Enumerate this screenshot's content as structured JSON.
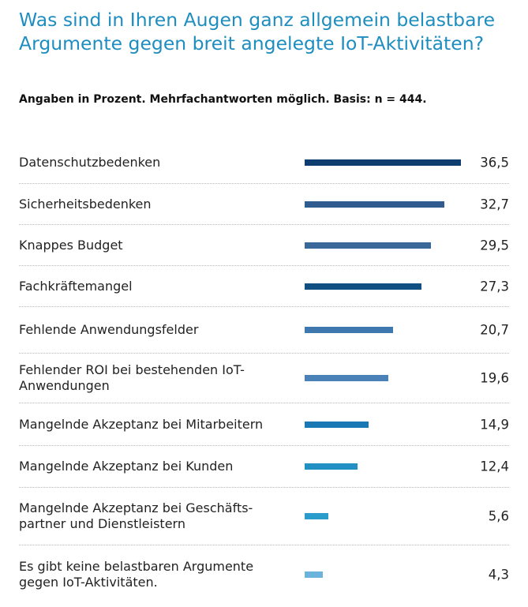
{
  "title": "Was sind in Ihren Augen ganz allgemein be­lastbare Argumente gegen breit angelegte IoT-Aktivitäten?",
  "subtitle": "Angaben in Prozent. Mehrfachantworten möglich. Basis: n = 444.",
  "chart_data": {
    "type": "bar",
    "orientation": "horizontal",
    "title": "Was sind in Ihren Augen ganz allgemein be­lastbare Argumente gegen breit angelegte IoT-Aktivitäten?",
    "subtitle": "Angaben in Prozent. Mehrfachantworten möglich. Basis: n = 444.",
    "categories": [
      "Datenschutzbedenken",
      "Sicherheitsbedenken",
      "Knappes Budget",
      "Fachkräftemangel",
      "Fehlende Anwendungsfelder",
      "Fehlender ROI bei bestehenden IoT-Anwendungen",
      "Mangelnde Akzeptanz bei Mitarbeitern",
      "Mangelnde Akzeptanz bei Kunden",
      "Mangelnde Akzeptanz bei Geschäfts­partner und Dienstleistern",
      "Es gibt keine belastbaren Argumente gegen IoT-Aktivitäten."
    ],
    "values": [
      36.5,
      32.7,
      29.5,
      27.3,
      20.7,
      19.6,
      14.9,
      12.4,
      5.6,
      4.3
    ],
    "value_labels": [
      "36,5",
      "32,7",
      "29,5",
      "27,3",
      "20,7",
      "19,6",
      "14,9",
      "12,4",
      "5,6",
      "4,3"
    ],
    "colors": [
      "#0d3c6e",
      "#2f5b8e",
      "#3a6898",
      "#0f4f82",
      "#3f78ae",
      "#4a82b8",
      "#1a78b4",
      "#2390c4",
      "#2a9ccc",
      "#6bb2dc"
    ],
    "grid": false,
    "legend": "none"
  }
}
